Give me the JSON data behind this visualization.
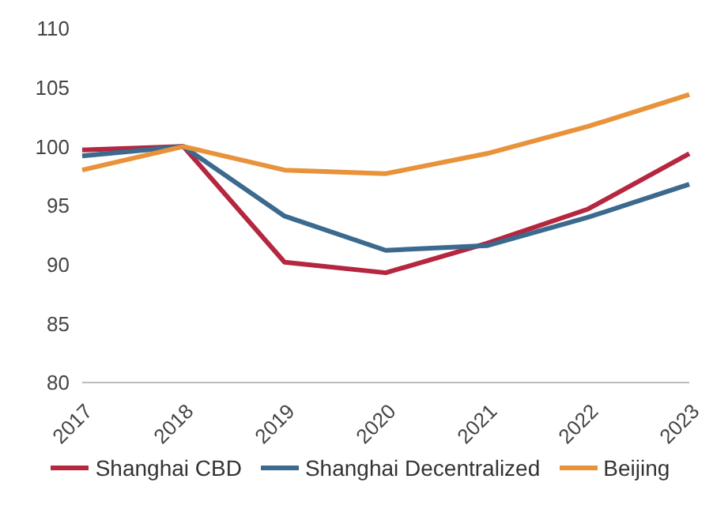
{
  "chart_data": {
    "type": "line",
    "categories": [
      "2017",
      "2018",
      "2019",
      "2020",
      "2021",
      "2022",
      "2023"
    ],
    "series": [
      {
        "name": "Shanghai CBD",
        "color": "#b5263f",
        "values": [
          99.7,
          100,
          90.2,
          89.3,
          91.8,
          94.7,
          99.4
        ]
      },
      {
        "name": "Shanghai Decentralized",
        "color": "#3b6a8e",
        "values": [
          99.2,
          100,
          94.1,
          91.2,
          91.6,
          94.0,
          96.8
        ]
      },
      {
        "name": "Beijing",
        "color": "#e8923a",
        "values": [
          98.0,
          100,
          98.0,
          97.7,
          99.4,
          101.7,
          104.4
        ]
      }
    ],
    "ylim": [
      80,
      110
    ],
    "yticks": [
      80,
      85,
      90,
      95,
      100,
      105,
      110
    ],
    "grid": false,
    "legend": "bottom",
    "marker": "none",
    "line_style": "solid"
  }
}
